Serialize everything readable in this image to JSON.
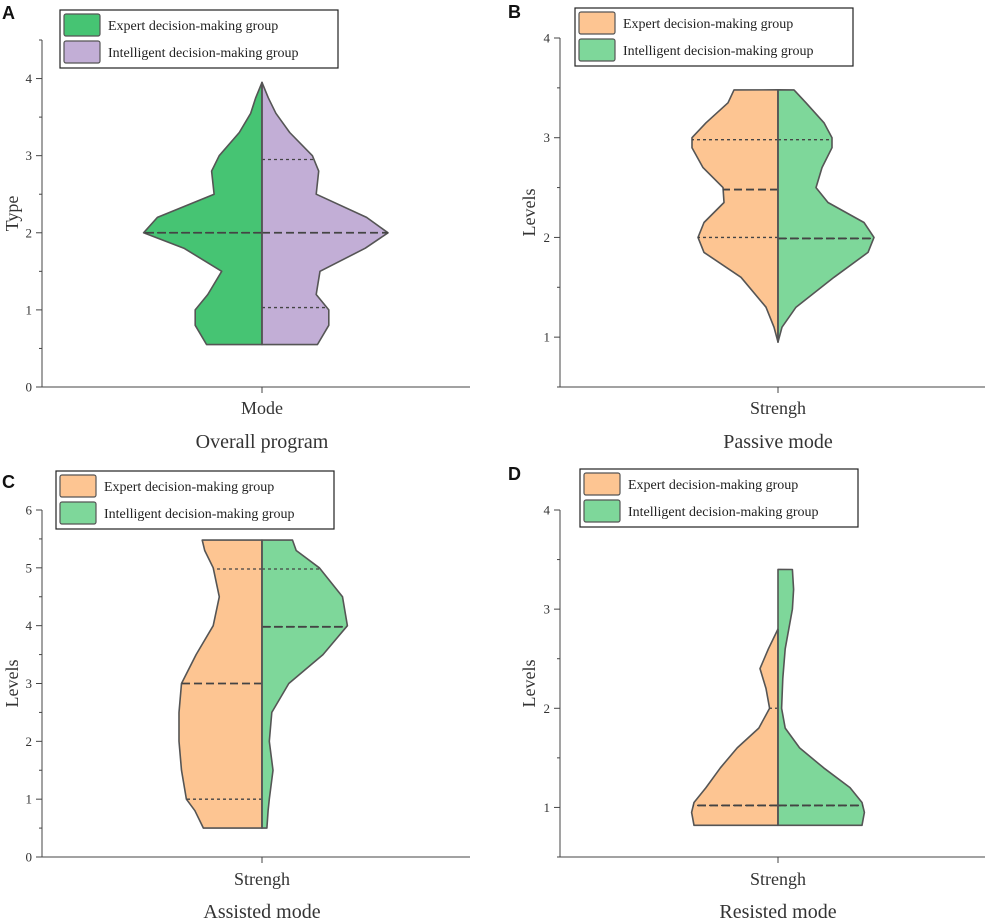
{
  "chart_data": [
    {
      "panel": "A",
      "type": "split-violin",
      "title": "Overall program",
      "xlabel": "Mode",
      "ylabel": "Type",
      "ylim": [
        0,
        4.5
      ],
      "yticks": [
        0,
        1,
        2,
        3,
        4
      ],
      "legend": [
        "Expert decision-making group",
        "Intelligent decision-making group"
      ],
      "colors": [
        "#46c473",
        "#c2aed6"
      ],
      "left": {
        "range": [
          0.55,
          3.95
        ],
        "profile": [
          [
            0.55,
            0.44
          ],
          [
            0.8,
            0.53
          ],
          [
            1.0,
            0.53
          ],
          [
            1.2,
            0.43
          ],
          [
            1.5,
            0.32
          ],
          [
            1.8,
            0.62
          ],
          [
            2.0,
            0.94
          ],
          [
            2.2,
            0.83
          ],
          [
            2.5,
            0.38
          ],
          [
            2.8,
            0.4
          ],
          [
            3.0,
            0.34
          ],
          [
            3.3,
            0.18
          ],
          [
            3.55,
            0.09
          ],
          [
            3.75,
            0.05
          ],
          [
            3.95,
            0.0
          ]
        ],
        "q1": 2.0,
        "median": 2.0,
        "q3": 2.0
      },
      "right": {
        "range": [
          0.55,
          3.95
        ],
        "profile": [
          [
            0.55,
            0.44
          ],
          [
            0.8,
            0.53
          ],
          [
            1.0,
            0.53
          ],
          [
            1.2,
            0.43
          ],
          [
            1.5,
            0.46
          ],
          [
            1.8,
            0.82
          ],
          [
            2.0,
            1.0
          ],
          [
            2.2,
            0.83
          ],
          [
            2.5,
            0.43
          ],
          [
            2.8,
            0.45
          ],
          [
            3.0,
            0.4
          ],
          [
            3.3,
            0.22
          ],
          [
            3.55,
            0.11
          ],
          [
            3.75,
            0.05
          ],
          [
            3.95,
            0.0
          ]
        ],
        "q1": 1.03,
        "median": 2.0,
        "q3": 2.95
      }
    },
    {
      "panel": "B",
      "type": "split-violin",
      "title": "Passive mode",
      "xlabel": "Strengh",
      "ylabel": "Levels",
      "ylim": [
        0.5,
        4
      ],
      "yticks": [
        1,
        2,
        3,
        4
      ],
      "legend": [
        "Expert decision-making group",
        "Intelligent decision-making group"
      ],
      "colors": [
        "#fdc592",
        "#7ed79a"
      ],
      "left": {
        "range": [
          0.95,
          3.48
        ],
        "profile": [
          [
            0.95,
            0.0
          ],
          [
            1.1,
            0.04
          ],
          [
            1.3,
            0.12
          ],
          [
            1.6,
            0.37
          ],
          [
            1.85,
            0.74
          ],
          [
            2.0,
            0.8
          ],
          [
            2.15,
            0.74
          ],
          [
            2.35,
            0.54
          ],
          [
            2.5,
            0.55
          ],
          [
            2.7,
            0.75
          ],
          [
            2.9,
            0.86
          ],
          [
            3.0,
            0.86
          ],
          [
            3.15,
            0.72
          ],
          [
            3.35,
            0.5
          ],
          [
            3.48,
            0.44
          ]
        ],
        "q1": 2.0,
        "median": 2.48,
        "q3": 2.98
      },
      "right": {
        "range": [
          0.95,
          3.48
        ],
        "profile": [
          [
            0.95,
            0.0
          ],
          [
            1.1,
            0.04
          ],
          [
            1.3,
            0.18
          ],
          [
            1.6,
            0.56
          ],
          [
            1.85,
            0.9
          ],
          [
            2.0,
            0.96
          ],
          [
            2.15,
            0.86
          ],
          [
            2.35,
            0.5
          ],
          [
            2.5,
            0.38
          ],
          [
            2.7,
            0.44
          ],
          [
            2.9,
            0.54
          ],
          [
            3.0,
            0.54
          ],
          [
            3.15,
            0.46
          ],
          [
            3.35,
            0.28
          ],
          [
            3.48,
            0.16
          ]
        ],
        "q1": 1.99,
        "median": 1.99,
        "q3": 2.98
      }
    },
    {
      "panel": "C",
      "type": "split-violin",
      "title": "Assisted mode",
      "xlabel": "Strengh",
      "ylabel": "Levels",
      "ylim": [
        0,
        6
      ],
      "yticks": [
        0,
        1,
        2,
        3,
        4,
        5,
        6
      ],
      "legend": [
        "Expert decision-making group",
        "Intelligent decision-making group"
      ],
      "colors": [
        "#fdc592",
        "#7ed79a"
      ],
      "left": {
        "range": [
          0.5,
          5.48
        ],
        "profile": [
          [
            0.5,
            0.48
          ],
          [
            0.8,
            0.55
          ],
          [
            1.0,
            0.62
          ],
          [
            1.5,
            0.66
          ],
          [
            2.0,
            0.68
          ],
          [
            2.5,
            0.68
          ],
          [
            3.0,
            0.66
          ],
          [
            3.5,
            0.54
          ],
          [
            4.0,
            0.4
          ],
          [
            4.5,
            0.35
          ],
          [
            5.0,
            0.4
          ],
          [
            5.3,
            0.47
          ],
          [
            5.48,
            0.49
          ]
        ],
        "q1": 1.0,
        "median": 3.0,
        "q3": 4.98
      },
      "right": {
        "range": [
          0.5,
          5.48
        ],
        "profile": [
          [
            0.5,
            0.04
          ],
          [
            0.8,
            0.05
          ],
          [
            1.0,
            0.06
          ],
          [
            1.5,
            0.09
          ],
          [
            2.0,
            0.06
          ],
          [
            2.5,
            0.08
          ],
          [
            3.0,
            0.22
          ],
          [
            3.5,
            0.5
          ],
          [
            4.0,
            0.7
          ],
          [
            4.5,
            0.66
          ],
          [
            5.0,
            0.47
          ],
          [
            5.3,
            0.28
          ],
          [
            5.48,
            0.25
          ]
        ],
        "q1": 3.98,
        "median": 3.98,
        "q3": 4.98
      }
    },
    {
      "panel": "D",
      "type": "split-violin",
      "title": "Resisted mode",
      "xlabel": "Strengh",
      "ylabel": "Levels",
      "ylim": [
        0.5,
        4
      ],
      "yticks": [
        1,
        2,
        3,
        4
      ],
      "legend": [
        "Expert decision-making group",
        "Intelligent decision-making group"
      ],
      "colors": [
        "#fdc592",
        "#7ed79a"
      ],
      "left": {
        "range": [
          0.82,
          2.8
        ],
        "profile": [
          [
            0.82,
            0.7
          ],
          [
            0.95,
            0.72
          ],
          [
            1.05,
            0.7
          ],
          [
            1.2,
            0.6
          ],
          [
            1.4,
            0.48
          ],
          [
            1.6,
            0.34
          ],
          [
            1.8,
            0.16
          ],
          [
            2.0,
            0.07
          ],
          [
            2.2,
            0.1
          ],
          [
            2.4,
            0.15
          ],
          [
            2.6,
            0.08
          ],
          [
            2.8,
            0.0
          ]
        ],
        "q1": 1.02,
        "median": 1.02,
        "q3": 2.0
      },
      "right": {
        "range": [
          0.82,
          3.4
        ],
        "profile": [
          [
            0.82,
            0.7
          ],
          [
            0.95,
            0.72
          ],
          [
            1.05,
            0.7
          ],
          [
            1.2,
            0.6
          ],
          [
            1.4,
            0.38
          ],
          [
            1.6,
            0.18
          ],
          [
            1.8,
            0.06
          ],
          [
            2.0,
            0.03
          ],
          [
            2.3,
            0.04
          ],
          [
            2.6,
            0.06
          ],
          [
            3.0,
            0.12
          ],
          [
            3.2,
            0.13
          ],
          [
            3.4,
            0.12
          ]
        ],
        "q1": 1.02,
        "median": 1.02,
        "q3": 1.02
      }
    }
  ]
}
